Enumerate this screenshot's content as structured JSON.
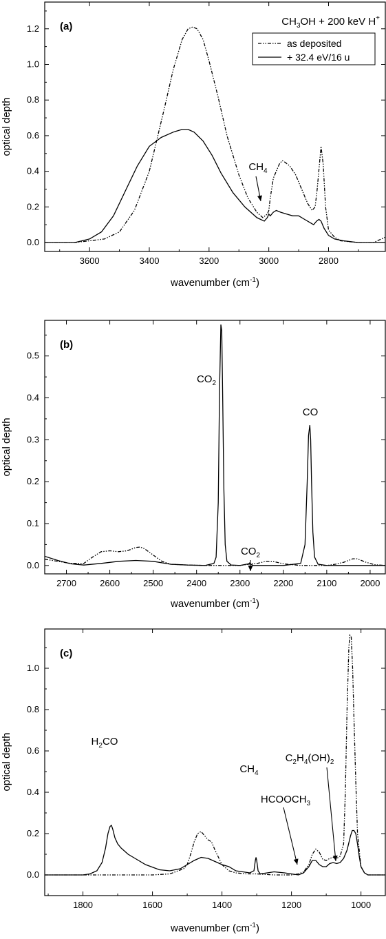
{
  "chart_data": [
    {
      "panel": "(a)",
      "type": "line",
      "xlabel": "wavenumber (cm-1)",
      "xlabel_parts": [
        "wavenumber (cm",
        "-1",
        ")"
      ],
      "ylabel": "optical depth",
      "xlim": [
        3750,
        2610
      ],
      "ylim": [
        -0.05,
        1.35
      ],
      "xticks": [
        3600,
        3400,
        3200,
        3000,
        2800
      ],
      "yticks": [
        0.0,
        0.2,
        0.4,
        0.6,
        0.8,
        1.0,
        1.2
      ],
      "title": "CH3OH + 200 keV H+",
      "title_parts": [
        "CH",
        "3",
        "OH + 200 keV H",
        "+"
      ],
      "legend_position": "top-right",
      "series": [
        {
          "name": "as deposited",
          "style": "dash-dot-dot",
          "x": [
            3750,
            3700,
            3650,
            3600,
            3550,
            3500,
            3450,
            3400,
            3350,
            3320,
            3290,
            3270,
            3255,
            3240,
            3220,
            3200,
            3170,
            3140,
            3100,
            3070,
            3040,
            3020,
            3005,
            3000,
            2995,
            2985,
            2975,
            2965,
            2955,
            2945,
            2930,
            2910,
            2890,
            2870,
            2855,
            2845,
            2838,
            2830,
            2825,
            2818,
            2810,
            2800,
            2780,
            2760,
            2700,
            2650,
            2610
          ],
          "y": [
            0.0,
            0.0,
            0.0,
            0.01,
            0.02,
            0.06,
            0.18,
            0.4,
            0.75,
            0.97,
            1.14,
            1.2,
            1.21,
            1.2,
            1.14,
            1.02,
            0.82,
            0.6,
            0.38,
            0.25,
            0.17,
            0.14,
            0.16,
            0.18,
            0.25,
            0.36,
            0.4,
            0.44,
            0.46,
            0.45,
            0.43,
            0.38,
            0.3,
            0.22,
            0.18,
            0.2,
            0.3,
            0.45,
            0.54,
            0.44,
            0.2,
            0.07,
            0.03,
            0.01,
            0.0,
            0.0,
            0.03
          ]
        },
        {
          "name": "+ 32.4 eV/16 u",
          "style": "solid",
          "x": [
            3750,
            3700,
            3650,
            3600,
            3560,
            3520,
            3480,
            3440,
            3400,
            3360,
            3320,
            3290,
            3270,
            3250,
            3220,
            3190,
            3160,
            3120,
            3080,
            3040,
            3015,
            3005,
            3000,
            2995,
            2985,
            2975,
            2960,
            2940,
            2920,
            2900,
            2880,
            2860,
            2850,
            2840,
            2832,
            2825,
            2815,
            2800,
            2780,
            2750,
            2700,
            2650,
            2610
          ],
          "y": [
            0.0,
            0.0,
            0.0,
            0.02,
            0.06,
            0.15,
            0.29,
            0.43,
            0.54,
            0.59,
            0.62,
            0.635,
            0.635,
            0.62,
            0.57,
            0.49,
            0.39,
            0.28,
            0.2,
            0.14,
            0.12,
            0.14,
            0.16,
            0.15,
            0.17,
            0.18,
            0.17,
            0.16,
            0.15,
            0.15,
            0.13,
            0.11,
            0.1,
            0.12,
            0.13,
            0.12,
            0.08,
            0.04,
            0.02,
            0.01,
            0.0,
            0.0,
            0.0
          ]
        }
      ],
      "annotations": [
        {
          "text": "CH4",
          "parts": [
            "CH",
            "4"
          ],
          "x": 3000,
          "y": 0.18
        }
      ]
    },
    {
      "panel": "(b)",
      "type": "line",
      "xlabel": "wavenumber (cm-1)",
      "xlabel_parts": [
        "wavenumber (cm",
        "-1",
        ")"
      ],
      "ylabel": "optical depth",
      "xlim": [
        2750,
        1965
      ],
      "ylim": [
        -0.02,
        0.585
      ],
      "xticks": [
        2700,
        2600,
        2500,
        2400,
        2300,
        2200,
        2100,
        2000
      ],
      "yticks": [
        0.0,
        0.1,
        0.2,
        0.3,
        0.4,
        0.5
      ],
      "series": [
        {
          "name": "as deposited",
          "style": "dash-dot-dot",
          "x": [
            2750,
            2720,
            2690,
            2660,
            2640,
            2620,
            2600,
            2580,
            2560,
            2540,
            2530,
            2520,
            2500,
            2480,
            2460,
            2420,
            2380,
            2350,
            2300,
            2280,
            2260,
            2240,
            2220,
            2200,
            2180,
            2160,
            2140,
            2120,
            2100,
            2080,
            2060,
            2040,
            2030,
            2010,
            1990,
            1965
          ],
          "y": [
            0.015,
            0.01,
            0.005,
            0.005,
            0.02,
            0.033,
            0.035,
            0.033,
            0.035,
            0.043,
            0.044,
            0.04,
            0.025,
            0.01,
            0.003,
            0.001,
            0.0,
            0.0,
            0.0,
            0.003,
            0.005,
            0.01,
            0.009,
            0.004,
            0.002,
            0.0,
            0.0,
            0.0,
            0.0,
            0.003,
            0.008,
            0.016,
            0.016,
            0.008,
            0.002,
            0.0
          ]
        },
        {
          "name": "+ 32.4 eV/16 u",
          "style": "solid",
          "x": [
            2750,
            2720,
            2690,
            2660,
            2620,
            2580,
            2540,
            2500,
            2460,
            2420,
            2380,
            2360,
            2355,
            2350,
            2347,
            2344,
            2342,
            2340,
            2337,
            2334,
            2330,
            2320,
            2300,
            2280,
            2278,
            2276,
            2270,
            2250,
            2200,
            2160,
            2150,
            2145,
            2142,
            2139,
            2137,
            2135,
            2132,
            2128,
            2120,
            2100,
            2050,
            2000,
            1965
          ],
          "y": [
            0.022,
            0.012,
            0.004,
            0.001,
            0.005,
            0.01,
            0.012,
            0.01,
            0.003,
            0.001,
            0.0,
            0.005,
            0.02,
            0.15,
            0.42,
            0.575,
            0.56,
            0.42,
            0.18,
            0.05,
            0.01,
            0.001,
            0.0,
            0.004,
            0.006,
            0.004,
            0.0,
            0.0,
            0.0,
            0.005,
            0.05,
            0.2,
            0.31,
            0.335,
            0.3,
            0.2,
            0.08,
            0.02,
            0.003,
            0.0,
            0.0,
            0.0,
            0.0
          ]
        }
      ],
      "annotations": [
        {
          "text": "CO2",
          "parts": [
            "CO",
            "2"
          ],
          "x": 2343,
          "y": 0.575
        },
        {
          "text": "CO2",
          "parts": [
            "CO",
            "2"
          ],
          "x": 2277,
          "y": 0.006
        },
        {
          "text": "CO",
          "parts": [
            "CO",
            ""
          ],
          "x": 2139,
          "y": 0.335
        }
      ]
    },
    {
      "panel": "(c)",
      "type": "line",
      "xlabel": "wavenumber (cm-1)",
      "xlabel_parts": [
        "wavenumber (cm",
        "-1",
        ")"
      ],
      "ylabel": "optical depth",
      "xlim": [
        1910,
        930
      ],
      "ylim": [
        -0.1,
        1.19
      ],
      "xticks": [
        1800,
        1600,
        1400,
        1200,
        1000
      ],
      "yticks": [
        0.0,
        0.2,
        0.4,
        0.6,
        0.8,
        1.0
      ],
      "series": [
        {
          "name": "as deposited",
          "style": "dash-dot-dot",
          "x": [
            1910,
            1850,
            1800,
            1700,
            1600,
            1550,
            1510,
            1500,
            1490,
            1480,
            1470,
            1460,
            1450,
            1440,
            1430,
            1420,
            1400,
            1380,
            1360,
            1330,
            1300,
            1250,
            1200,
            1180,
            1165,
            1150,
            1140,
            1130,
            1120,
            1110,
            1100,
            1090,
            1080,
            1070,
            1060,
            1050,
            1045,
            1040,
            1035,
            1032,
            1028,
            1024,
            1020,
            1015,
            1010,
            1000,
            990,
            980,
            960,
            930
          ],
          "y": [
            0.0,
            0.0,
            0.0,
            0.0,
            0.0,
            0.005,
            0.03,
            0.05,
            0.1,
            0.16,
            0.2,
            0.21,
            0.19,
            0.17,
            0.16,
            0.12,
            0.05,
            0.02,
            0.01,
            0.005,
            0.005,
            0.0,
            0.0,
            0.005,
            0.015,
            0.05,
            0.1,
            0.125,
            0.11,
            0.075,
            0.07,
            0.08,
            0.085,
            0.08,
            0.09,
            0.15,
            0.4,
            0.8,
            1.1,
            1.16,
            1.15,
            1.0,
            0.75,
            0.45,
            0.2,
            0.04,
            0.01,
            0.0,
            0.0,
            0.0
          ]
        },
        {
          "name": "+ 32.4 eV/16 u",
          "style": "solid",
          "x": [
            1910,
            1850,
            1800,
            1780,
            1760,
            1745,
            1735,
            1728,
            1722,
            1718,
            1714,
            1708,
            1700,
            1690,
            1670,
            1650,
            1620,
            1580,
            1550,
            1520,
            1500,
            1480,
            1460,
            1440,
            1420,
            1400,
            1380,
            1360,
            1340,
            1320,
            1308,
            1304,
            1302,
            1300,
            1296,
            1290,
            1270,
            1250,
            1220,
            1200,
            1180,
            1165,
            1160,
            1150,
            1140,
            1130,
            1120,
            1110,
            1100,
            1090,
            1080,
            1070,
            1060,
            1050,
            1040,
            1030,
            1025,
            1020,
            1015,
            1010,
            1005,
            1000,
            990,
            980,
            960,
            930
          ],
          "y": [
            0.0,
            0.0,
            0.0,
            0.005,
            0.02,
            0.06,
            0.13,
            0.2,
            0.235,
            0.24,
            0.22,
            0.18,
            0.15,
            0.13,
            0.1,
            0.08,
            0.05,
            0.025,
            0.02,
            0.03,
            0.05,
            0.07,
            0.085,
            0.08,
            0.065,
            0.05,
            0.04,
            0.02,
            0.015,
            0.01,
            0.02,
            0.07,
            0.085,
            0.07,
            0.02,
            0.005,
            0.01,
            0.015,
            0.01,
            0.005,
            0.0,
            0.01,
            0.02,
            0.04,
            0.07,
            0.07,
            0.05,
            0.04,
            0.04,
            0.055,
            0.06,
            0.055,
            0.06,
            0.08,
            0.12,
            0.19,
            0.215,
            0.215,
            0.2,
            0.15,
            0.09,
            0.04,
            0.01,
            0.0,
            0.0,
            0.0
          ]
        }
      ],
      "annotations": [
        {
          "text": "H2CO",
          "parts": [
            "H",
            "2",
            "CO"
          ],
          "x": 1720,
          "y": 0.24
        },
        {
          "text": "CH4",
          "parts": [
            "CH",
            "4"
          ],
          "x": 1302,
          "y": 0.085
        },
        {
          "text": "HCOOCH3",
          "parts": [
            "HCOOCH",
            "3"
          ],
          "x": 1163,
          "y": 0.01
        },
        {
          "text": "C2H4(OH)2",
          "parts": [
            "C",
            "2",
            "H",
            "4",
            "(OH)",
            "2"
          ],
          "x": 1088,
          "y": 0.085
        }
      ]
    }
  ]
}
